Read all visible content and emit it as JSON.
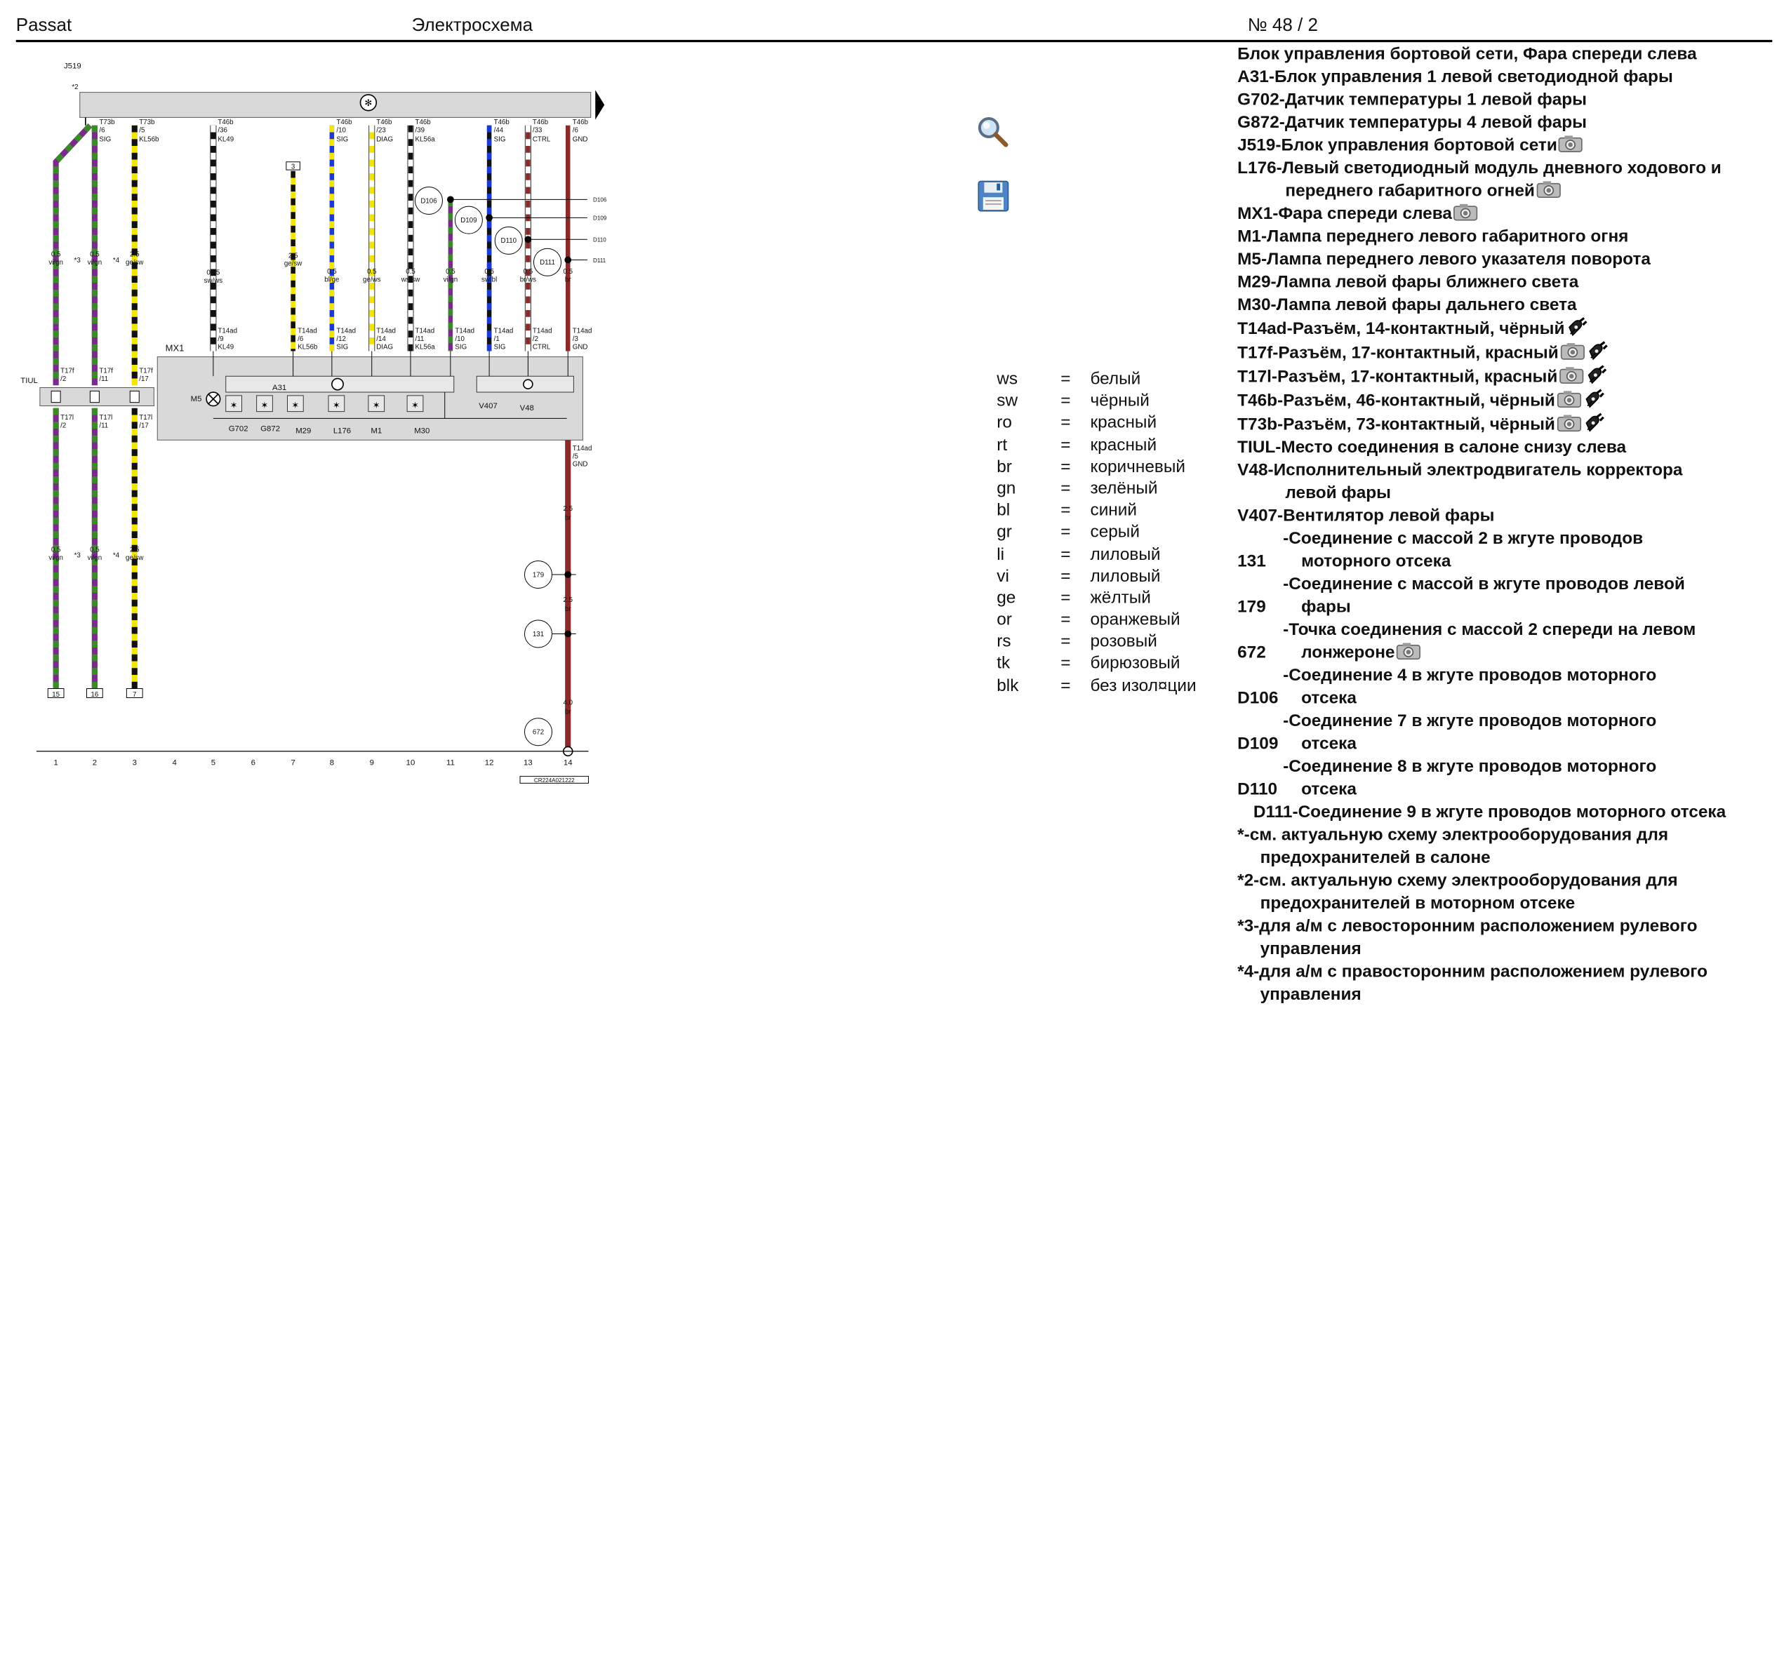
{
  "header": {
    "model": "Passat",
    "doc_type": "Электросхема",
    "number": "№  48 / 2"
  },
  "diagram": {
    "ref_top": "J519",
    "ref_top_note": "*2",
    "module_label": "MX1",
    "module_inner": "A31",
    "ground_label": "TIUL",
    "wires": [
      {
        "col": "1",
        "top_pin": "",
        "top_func": "",
        "size": "0.5",
        "color": "vi/gn",
        "note": "*3",
        "t17f": "T17f/2",
        "t17l": "T17l/2",
        "bottom_box": "15",
        "lower_size": "0.5",
        "lower_color": "vi/gn"
      },
      {
        "col": "2",
        "top_pin": "T73b/6",
        "top_func": "SIG",
        "size": "0.5",
        "color": "vi/gn",
        "note": "*4",
        "t17f": "T17f/11",
        "t17l": "T17l/11",
        "bottom_box": "16",
        "lower_size": "0.5",
        "lower_color": "vi/gn"
      },
      {
        "col": "3",
        "top_pin": "T73b/5",
        "top_func": "KL56b",
        "size": "2.5",
        "color": "ge/sw",
        "note": "",
        "t17f": "T17f/17",
        "t17l": "T17l/17",
        "bottom_box": "7",
        "lower_size": "2.5",
        "lower_color": "ge/sw"
      },
      {
        "col": "5",
        "top_pin": "T46b/36",
        "top_func": "KL49",
        "size": "0.75",
        "color": "sw/ws",
        "t14": "T14ad/9",
        "t14func": "KL49"
      },
      {
        "col": "7",
        "top_pin": "3",
        "top_func": "",
        "size": "2.5",
        "color": "ge/sw",
        "t14": "T14ad/6",
        "t14func": "KL56b"
      },
      {
        "col": "8",
        "top_pin": "T46b/10",
        "top_func": "SIG",
        "size": "0.5",
        "color": "bl/ge",
        "t14": "T14ad/12",
        "t14func": "SIG"
      },
      {
        "col": "9",
        "top_pin": "T46b/23",
        "top_func": "DIAG",
        "size": "0.5",
        "color": "ge/ws",
        "t14": "T14ad/14",
        "t14func": "DIAG"
      },
      {
        "col": "10",
        "top_pin": "T46b/39",
        "top_func": "KL56a",
        "size": "0.5",
        "color": "ws/sw",
        "t14": "T14ad/11",
        "t14func": "KL56a"
      },
      {
        "col": "11",
        "top_pin": "",
        "top_func": "",
        "size": "0.5",
        "color": "vi/gn",
        "t14": "T14ad/10",
        "t14func": "SIG"
      },
      {
        "col": "12",
        "top_pin": "T46b/44",
        "top_func": "SIG",
        "size": "0.5",
        "color": "sw/bl",
        "t14": "T14ad/1",
        "t14func": "SIG"
      },
      {
        "col": "13",
        "top_pin": "T46b/33",
        "top_func": "CTRL",
        "size": "0.5",
        "color": "br/ws",
        "t14": "T14ad/2",
        "t14func": "CTRL"
      },
      {
        "col": "14",
        "top_pin": "T46b/6",
        "top_func": "GND",
        "size": "0.5",
        "color": "br",
        "t14": "T14ad/3",
        "t14func": "GND"
      }
    ],
    "splices": [
      "D106",
      "D109",
      "D110",
      "D111"
    ],
    "splice_refs": [
      "D106",
      "D109",
      "D110",
      "D111"
    ],
    "ground_chain": [
      {
        "pin": "T14ad/5",
        "func": "GND"
      },
      {
        "size": "2.5",
        "color": "br",
        "point": "179"
      },
      {
        "size": "2.5",
        "color": "br",
        "point": "131"
      },
      {
        "size": "4.0",
        "color": "br",
        "point": "672"
      }
    ],
    "inner_parts": [
      "M5",
      "G702",
      "G872",
      "M29",
      "L176",
      "M1",
      "M30",
      "V407",
      "V48"
    ],
    "column_numbers": [
      "1",
      "2",
      "3",
      "4",
      "5",
      "6",
      "7",
      "8",
      "9",
      "10",
      "11",
      "12",
      "13",
      "14"
    ],
    "footer_code": "CR224A021222"
  },
  "tools": [
    {
      "name": "magnifier-icon"
    },
    {
      "name": "save-icon"
    }
  ],
  "legend": [
    {
      "code": "ws",
      "eq": "=",
      "label": "белый"
    },
    {
      "code": "sw",
      "eq": "=",
      "label": "чёрный"
    },
    {
      "code": "ro",
      "eq": "=",
      "label": "красный"
    },
    {
      "code": "rt",
      "eq": "=",
      "label": "красный"
    },
    {
      "code": "br",
      "eq": "=",
      "label": "коричневый"
    },
    {
      "code": "gn",
      "eq": "=",
      "label": "зелёный"
    },
    {
      "code": "bl",
      "eq": "=",
      "label": "синий"
    },
    {
      "code": "gr",
      "eq": "=",
      "label": "серый"
    },
    {
      "code": "li",
      "eq": "=",
      "label": "лиловый"
    },
    {
      "code": "vi",
      "eq": "=",
      "label": "лиловый"
    },
    {
      "code": "ge",
      "eq": "=",
      "label": "жёлтый"
    },
    {
      "code": "or",
      "eq": "=",
      "label": "оранжевый"
    },
    {
      "code": "rs",
      "eq": "=",
      "label": "розовый"
    },
    {
      "code": "tk",
      "eq": "=",
      "label": "бирюзовый"
    },
    {
      "code": "blk",
      "eq": "=",
      "label": "без изол¤ции"
    }
  ],
  "components": [
    {
      "text": "Блок управления бортовой сети, Фара спереди слева",
      "icons": []
    },
    {
      "text": "A31-Блок управления 1 левой светодиодной фары",
      "icons": []
    },
    {
      "text": "G702-Датчик температуры 1 левой фары",
      "icons": []
    },
    {
      "text": "G872-Датчик температуры 4 левой фары",
      "icons": []
    },
    {
      "text": "J519-Блок управления бортовой сети",
      "icons": [
        "camera"
      ]
    },
    {
      "text": "L176-Левый светодиодный модуль дневного ходового и",
      "icons": []
    },
    {
      "text": "переднего габаритного огней",
      "icons": [
        "camera"
      ],
      "indent": true
    },
    {
      "text": "MX1-Фара спереди слева",
      "icons": [
        "camera"
      ]
    },
    {
      "text": "M1-Лампа переднего левого габаритного огня",
      "icons": []
    },
    {
      "text": "M5-Лампа переднего левого указателя поворота",
      "icons": []
    },
    {
      "text": "M29-Лампа левой фары ближнего света",
      "icons": []
    },
    {
      "text": "M30-Лампа левой фары дальнего света",
      "icons": []
    },
    {
      "text": "T14ad-Разъём, 14-контактный, чёрный",
      "icons": [
        "plug"
      ]
    },
    {
      "text": "T17f-Разъём, 17-контактный, красный",
      "icons": [
        "camera",
        "plug"
      ]
    },
    {
      "text": "T17l-Разъём, 17-контактный, красный",
      "icons": [
        "camera",
        "plug"
      ]
    },
    {
      "text": "T46b-Разъём, 46-контактный, чёрный",
      "icons": [
        "camera",
        "plug"
      ]
    },
    {
      "text": "T73b-Разъём, 73-контактный, чёрный",
      "icons": [
        "camera",
        "plug"
      ]
    },
    {
      "text": "TIUL-Место соединения в салоне снизу слева",
      "icons": []
    },
    {
      "text": "V48-Исполнительный электродвигатель корректора",
      "icons": []
    },
    {
      "text": "левой фары",
      "icons": [],
      "indent": true
    },
    {
      "text": "V407-Вентилятор левой фары",
      "icons": []
    }
  ],
  "ground_items": [
    {
      "code": "131",
      "line1": "-Соединение с массой 2 в жгуте проводов",
      "line2": "моторного отсека",
      "icons": []
    },
    {
      "code": "179",
      "line1": "-Соединение с массой в жгуте проводов левой",
      "line2": "фары",
      "icons": []
    },
    {
      "code": "672",
      "line1": "-Точка соединения с массой 2 спереди на левом",
      "line2": "лонжероне",
      "icons": [
        "camera"
      ]
    },
    {
      "code": "D106",
      "line1": "-Соединение 4 в жгуте проводов моторного",
      "line2": "отсека",
      "icons": []
    },
    {
      "code": "D109",
      "line1": "-Соединение 7 в жгуте проводов моторного",
      "line2": "отсека",
      "icons": []
    },
    {
      "code": "D110",
      "line1": "-Соединение 8 в жгуте проводов моторного",
      "line2": "отсека",
      "icons": []
    }
  ],
  "d111": "D111-Соединение 9 в жгуте проводов моторного отсека",
  "notes": [
    {
      "line1": "*-см. актуальную схему электрооборудования для",
      "line2": "предохранителей в салоне"
    },
    {
      "line1": "*2-см. актуальную схему электрооборудования для",
      "line2": "предохранителей в моторном отсеке"
    },
    {
      "line1": "*3-для а/м с левосторонним расположением рулевого",
      "line2": "управления"
    },
    {
      "line1": "*4-для а/м с правосторонним расположением рулевого",
      "line2": "управления"
    }
  ]
}
